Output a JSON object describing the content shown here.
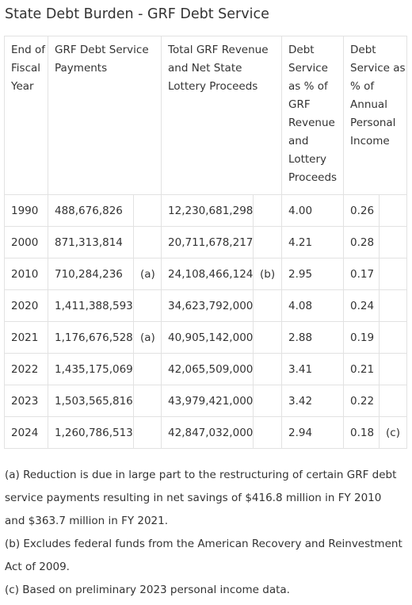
{
  "title": "State Debt Burden - GRF Debt Service",
  "headers": {
    "year": "End of Fiscal Year",
    "payments": "GRF Debt Service Payments",
    "revenue": "Total GRF Revenue and Net State Lottery Proceeds",
    "pct_revenue": "Debt Service as % of GRF Revenue and Lottery Proceeds",
    "pct_income": "Debt Service as % of Annual Personal Income"
  },
  "rows": [
    {
      "year": "1990",
      "payments": "488,676,826",
      "payments_note": "",
      "revenue": "12,230,681,298",
      "revenue_note": "",
      "pct_revenue": "4.00",
      "pct_income": "0.26",
      "income_note": ""
    },
    {
      "year": "2000",
      "payments": "871,313,814",
      "payments_note": "",
      "revenue": "20,711,678,217",
      "revenue_note": "",
      "pct_revenue": "4.21",
      "pct_income": "0.28",
      "income_note": ""
    },
    {
      "year": "2010",
      "payments": "710,284,236",
      "payments_note": "(a)",
      "revenue": "24,108,466,124",
      "revenue_note": "(b)",
      "pct_revenue": "2.95",
      "pct_income": "0.17",
      "income_note": ""
    },
    {
      "year": "2020",
      "payments": "1,411,388,593",
      "payments_note": "",
      "revenue": "34,623,792,000",
      "revenue_note": "",
      "pct_revenue": "4.08",
      "pct_income": "0.24",
      "income_note": ""
    },
    {
      "year": "2021",
      "payments": "1,176,676,528",
      "payments_note": "(a)",
      "revenue": "40,905,142,000",
      "revenue_note": "",
      "pct_revenue": "2.88",
      "pct_income": "0.19",
      "income_note": ""
    },
    {
      "year": "2022",
      "payments": "1,435,175,069",
      "payments_note": "",
      "revenue": "42,065,509,000",
      "revenue_note": "",
      "pct_revenue": "3.41",
      "pct_income": "0.21",
      "income_note": ""
    },
    {
      "year": "2023",
      "payments": "1,503,565,816",
      "payments_note": "",
      "revenue": "43,979,421,000",
      "revenue_note": "",
      "pct_revenue": "3.42",
      "pct_income": "0.22",
      "income_note": ""
    },
    {
      "year": "2024",
      "payments": "1,260,786,513",
      "payments_note": "",
      "revenue": "42,847,032,000",
      "revenue_note": "",
      "pct_revenue": "2.94",
      "pct_income": "0.18",
      "income_note": "(c)"
    }
  ],
  "footnotes": [
    "(a) Reduction is due in large part to the restructuring of certain GRF debt service payments resulting in net savings of $416.8 million in FY 2010 and $363.7 million in FY 2021.",
    "(b) Excludes federal funds from the American Recovery and Reinvestment Act of 2009.",
    "(c) Based on preliminary 2023 personal income data."
  ]
}
